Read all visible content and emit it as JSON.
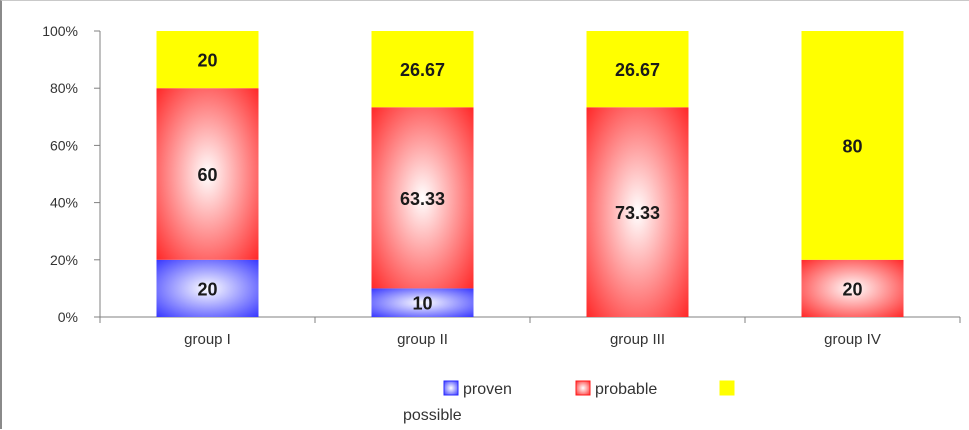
{
  "chart_data": {
    "type": "bar",
    "stacked": true,
    "normalized": true,
    "categories": [
      "group I",
      "group II",
      "group III",
      "group IV"
    ],
    "series": [
      {
        "name": "proven",
        "color": "#2a2aff",
        "values": [
          20,
          10,
          0,
          0
        ],
        "labels": [
          "20",
          "10",
          "",
          ""
        ]
      },
      {
        "name": "probable",
        "color": "#ff1a1a",
        "values": [
          60,
          63.33,
          73.33,
          20
        ],
        "labels": [
          "60",
          "63.33",
          "73.33",
          "20"
        ]
      },
      {
        "name": "possible",
        "color": "#ffff00",
        "values": [
          20,
          26.67,
          26.67,
          80
        ],
        "labels": [
          "20",
          "26.67",
          "26.67",
          "80"
        ]
      }
    ],
    "yticks": [
      "0%",
      "20%",
      "40%",
      "60%",
      "80%",
      "100%"
    ],
    "ylim": [
      0,
      100
    ],
    "title": "",
    "xlabel": "",
    "ylabel": "",
    "grid": false,
    "legend_position": "bottom"
  }
}
